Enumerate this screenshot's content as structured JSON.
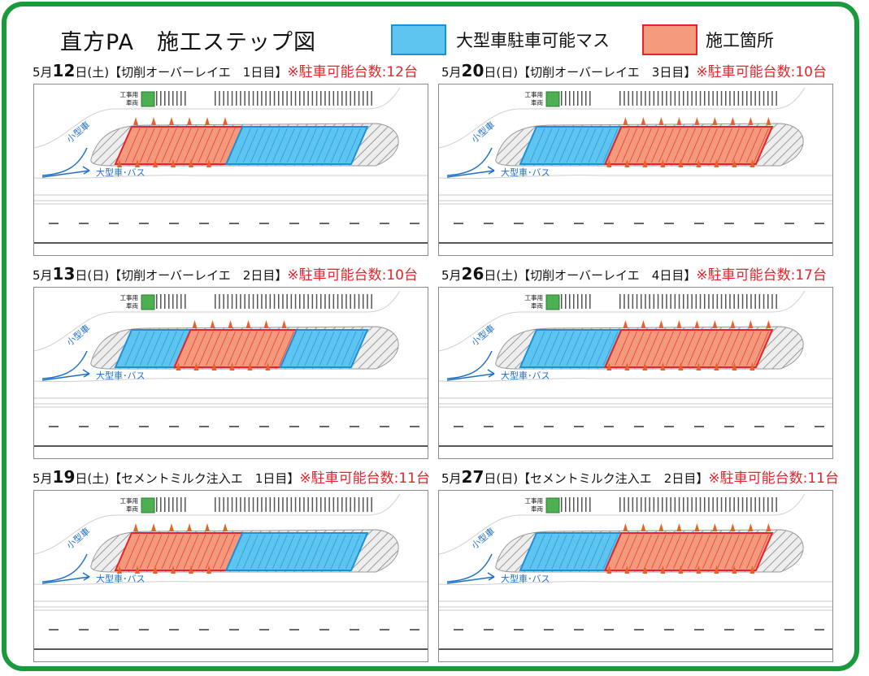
{
  "title": "直方PA　施工ステップ図",
  "legend": [
    {
      "label": "大型車駐車可能マス",
      "color": "#5ec4f0",
      "border": "#1e90d8"
    },
    {
      "label": "施工箇所",
      "color": "#f39a7c",
      "border": "#e8232a"
    }
  ],
  "map_labels": {
    "work_vehicle_line1": "工事用",
    "work_vehicle_line2": "車両",
    "small_car": "小型車",
    "large_bus": "大型車･バス"
  },
  "panels": [
    {
      "month": "5月",
      "day": "12",
      "dow": "日(土)",
      "task": "【切削オーバーレイエ　1日目】",
      "count_label": "※駐車可能台数:12台",
      "sequence": [
        "red",
        "blue"
      ]
    },
    {
      "month": "5月",
      "day": "20",
      "dow": "日(日)",
      "task": "【切削オーバーレイエ　3日目】",
      "count_label": "※駐車可能台数:10台",
      "sequence": [
        "blue",
        "red"
      ]
    },
    {
      "month": "5月",
      "day": "13",
      "dow": "日(日)",
      "task": "【切削オーバーレイエ　2日目】",
      "count_label": "※駐車可能台数:10台",
      "sequence": [
        "blue",
        "red",
        "blue"
      ]
    },
    {
      "month": "5月",
      "day": "26",
      "dow": "日(土)",
      "task": "【切削オーバーレイエ　4日目】",
      "count_label": "※駐車可能台数:17台",
      "sequence": [
        "blue",
        "red"
      ]
    },
    {
      "month": "5月",
      "day": "19",
      "dow": "日(土)",
      "task": "【セメントミルク注入エ　1日目】",
      "count_label": "※駐車可能台数:11台",
      "sequence": [
        "red",
        "blue"
      ]
    },
    {
      "month": "5月",
      "day": "27",
      "dow": "日(日)",
      "task": "【セメントミルク注入エ　2日目】",
      "count_label": "※駐車可能台数:11台",
      "sequence": [
        "blue",
        "red"
      ]
    }
  ]
}
